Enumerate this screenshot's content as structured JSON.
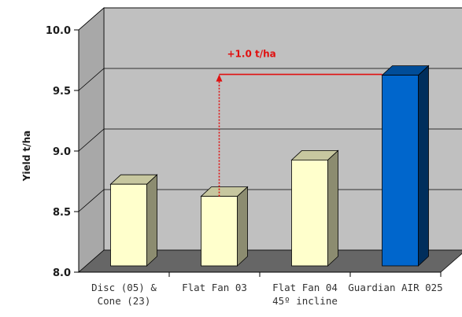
{
  "chart_data": {
    "type": "bar",
    "style": "3d",
    "categories": [
      [
        "Disc (05) &",
        "Cone (23)"
      ],
      [
        "Flat Fan 03"
      ],
      [
        "Flat Fan 04",
        "45º incline"
      ],
      [
        "Guardian AIR 025"
      ]
    ],
    "values": [
      8.7,
      8.6,
      8.9,
      9.6
    ],
    "bar_colors": [
      "#ffffcc",
      "#ffffcc",
      "#ffffcc",
      "#0066cc"
    ],
    "ylabel": "Yield t/ha",
    "xlabel": "",
    "title": "",
    "ylim": [
      8.0,
      10.0
    ],
    "yticks": [
      "10.0",
      "9.5",
      "9.0",
      "8.5",
      "8.0"
    ],
    "grid": true,
    "annotation": {
      "text": "+1.0 t/ha",
      "from_category": 1,
      "to_category": 3,
      "level": 9.6,
      "color": "#e01010"
    },
    "colors": {
      "wall": "#c0c0c0",
      "floor": "#666666",
      "highlight": "#0066cc"
    }
  }
}
